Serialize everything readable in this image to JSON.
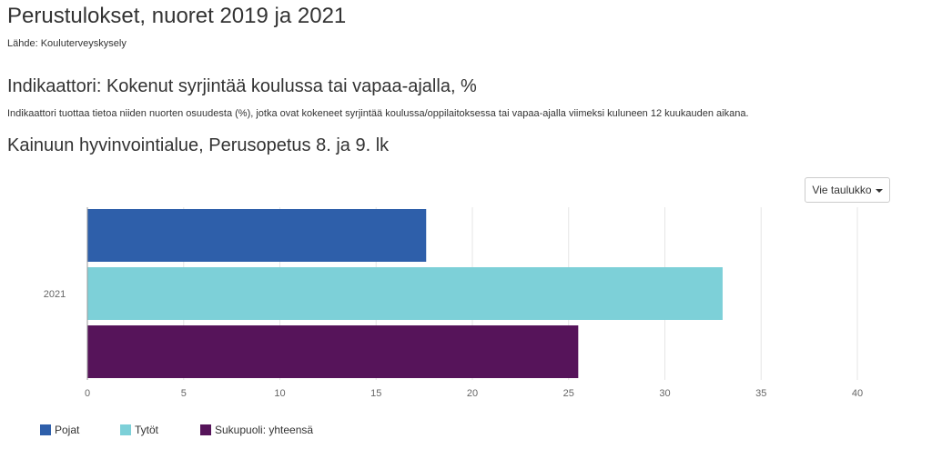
{
  "header": {
    "title": "Perustulokset, nuoret 2019 ja 2021",
    "source": "Lähde: Kouluterveyskysely"
  },
  "indicator": {
    "title": "Indikaattori: Kokenut syrjintää koulussa tai vapaa-ajalla, %",
    "description": "Indikaattori tuottaa tietoa niiden nuorten osuudesta (%), jotka ovat kokeneet syrjintää koulussa/oppilaitoksessa tai vapaa-ajalla viimeksi kuluneen 12 kuukauden aikana."
  },
  "region": {
    "title": "Kainuun hyvinvointialue, Perusopetus 8. ja 9. lk"
  },
  "toolbar": {
    "export_label": "Vie taulukko"
  },
  "chart_data": {
    "type": "bar",
    "orientation": "horizontal",
    "categories": [
      "2021"
    ],
    "series": [
      {
        "name": "Pojat",
        "values": [
          17.6
        ],
        "color": "#2e5faa"
      },
      {
        "name": "Tytöt",
        "values": [
          33.0
        ],
        "color": "#7dd0d8"
      },
      {
        "name": "Sukupuoli: yhteensä",
        "values": [
          25.5
        ],
        "color": "#56145a"
      }
    ],
    "xlim": [
      0,
      40
    ],
    "xticks": [
      0,
      5,
      10,
      15,
      20,
      25,
      30,
      35,
      40
    ],
    "grid": true,
    "legend_position": "bottom-left"
  }
}
